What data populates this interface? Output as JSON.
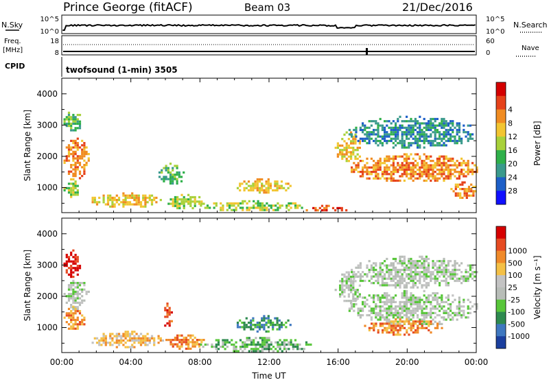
{
  "header": {
    "station": "Prince George (fitACF)",
    "beam": "Beam 03",
    "date": "21/Dec/2016"
  },
  "strip": {
    "nsky_label": "N.Sky",
    "nsearch_label": "N.Search",
    "freq_label_1": "Freq.",
    "freq_label_2": "[MHz]",
    "nave_label": "Nave",
    "cpid_label": "CPID",
    "mode_text": "twofsound (1-min) 3505",
    "noise_ticks_left": [
      "10^5",
      "10^0"
    ],
    "noise_ticks_right": [
      "10^5",
      "10^0"
    ],
    "freq_ticks": [
      "18",
      "8"
    ],
    "nave_ticks": [
      "60",
      "0"
    ]
  },
  "x_tick_labels": [
    "00:00",
    "04:00",
    "08:00",
    "12:00",
    "16:00",
    "20:00",
    "00:00"
  ],
  "x_title": "Time UT",
  "y_title": "Slant Range [km]",
  "y_tick_labels": [
    "1000",
    "2000",
    "3000",
    "4000"
  ],
  "colorbars": {
    "power": {
      "title": "Power [dB]",
      "labels": [
        "4",
        "8",
        "12",
        "16",
        "20",
        "24",
        "28"
      ],
      "colors": [
        "#1010ff",
        "#1d5fc8",
        "#3a9a8c",
        "#2fb04a",
        "#a8d13a",
        "#f2c531",
        "#f08c22",
        "#e6421a",
        "#d40000"
      ]
    },
    "velocity": {
      "title": "Velocity [m s⁻¹]",
      "labels": [
        "1000",
        "500",
        "100",
        "25",
        "-25",
        "-100",
        "-500",
        "-1000"
      ],
      "colors": [
        "#1b3f9e",
        "#3f78c0",
        "#2e8a4f",
        "#58c63a",
        "#b8bdb8",
        "#c3c3c3",
        "#f4c046",
        "#f08a2a",
        "#e64b22",
        "#d60000"
      ]
    }
  },
  "chart_data": [
    {
      "type": "heatmap",
      "title": "Power",
      "x_unit": "hours UT",
      "xlim": [
        0,
        24
      ],
      "ylim": [
        200,
        4500
      ],
      "xlabel": "Time UT",
      "ylabel": "Slant Range [km]",
      "colorbar_label": "Power [dB]",
      "patches": [
        {
          "t0": 0.1,
          "t1": 1.1,
          "r0": 2800,
          "r1": 3500,
          "level": 3
        },
        {
          "t0": 0.1,
          "t1": 1.6,
          "r0": 1300,
          "r1": 2600,
          "level": 6
        },
        {
          "t0": 0.1,
          "t1": 1.0,
          "r0": 700,
          "r1": 1300,
          "level": 4
        },
        {
          "t0": 1.6,
          "t1": 5.8,
          "r0": 400,
          "r1": 850,
          "level": 5
        },
        {
          "t0": 5.6,
          "t1": 7.0,
          "r0": 1100,
          "r1": 1800,
          "level": 3
        },
        {
          "t0": 6.0,
          "t1": 8.2,
          "r0": 350,
          "r1": 800,
          "level": 4
        },
        {
          "t0": 8.0,
          "t1": 14.0,
          "r0": 250,
          "r1": 600,
          "level": 4
        },
        {
          "t0": 10.0,
          "t1": 13.2,
          "r0": 850,
          "r1": 1300,
          "level": 5
        },
        {
          "t0": 14.0,
          "t1": 16.5,
          "r0": 250,
          "r1": 450,
          "level": 7
        },
        {
          "t0": 15.8,
          "t1": 17.3,
          "r0": 1800,
          "r1": 2800,
          "level": 5
        },
        {
          "t0": 16.6,
          "t1": 24.0,
          "r0": 1200,
          "r1": 2100,
          "level": 6
        },
        {
          "t0": 16.6,
          "t1": 24.0,
          "r0": 2300,
          "r1": 3300,
          "level": 2
        },
        {
          "t0": 22.5,
          "t1": 24.0,
          "r0": 700,
          "r1": 1200,
          "level": 6
        }
      ]
    },
    {
      "type": "heatmap",
      "title": "Velocity",
      "x_unit": "hours UT",
      "xlim": [
        0,
        24
      ],
      "ylim": [
        200,
        4500
      ],
      "xlabel": "Time UT",
      "ylabel": "Slant Range [km]",
      "colorbar_label": "Velocity [m s⁻¹]",
      "patches": [
        {
          "t0": 0.1,
          "t1": 1.1,
          "r0": 2600,
          "r1": 3500,
          "level": 9
        },
        {
          "t0": 0.1,
          "t1": 1.5,
          "r0": 1600,
          "r1": 2600,
          "level": 4
        },
        {
          "t0": 0.1,
          "t1": 1.3,
          "r0": 900,
          "r1": 1700,
          "level": 7
        },
        {
          "t0": 1.6,
          "t1": 5.8,
          "r0": 400,
          "r1": 900,
          "level": 6
        },
        {
          "t0": 5.8,
          "t1": 6.4,
          "r0": 1000,
          "r1": 1800,
          "level": 8
        },
        {
          "t0": 6.0,
          "t1": 8.2,
          "r0": 350,
          "r1": 850,
          "level": 7
        },
        {
          "t0": 8.0,
          "t1": 14.5,
          "r0": 250,
          "r1": 700,
          "level": 3
        },
        {
          "t0": 10.0,
          "t1": 13.2,
          "r0": 900,
          "r1": 1400,
          "level": 2
        },
        {
          "t0": 15.8,
          "t1": 17.3,
          "r0": 1800,
          "r1": 2800,
          "level": 4
        },
        {
          "t0": 16.6,
          "t1": 24.0,
          "r0": 1100,
          "r1": 2200,
          "level": 4
        },
        {
          "t0": 16.6,
          "t1": 24.0,
          "r0": 2300,
          "r1": 3300,
          "level": 4
        },
        {
          "t0": 17.5,
          "t1": 22.0,
          "r0": 800,
          "r1": 1300,
          "level": 7
        }
      ]
    }
  ]
}
